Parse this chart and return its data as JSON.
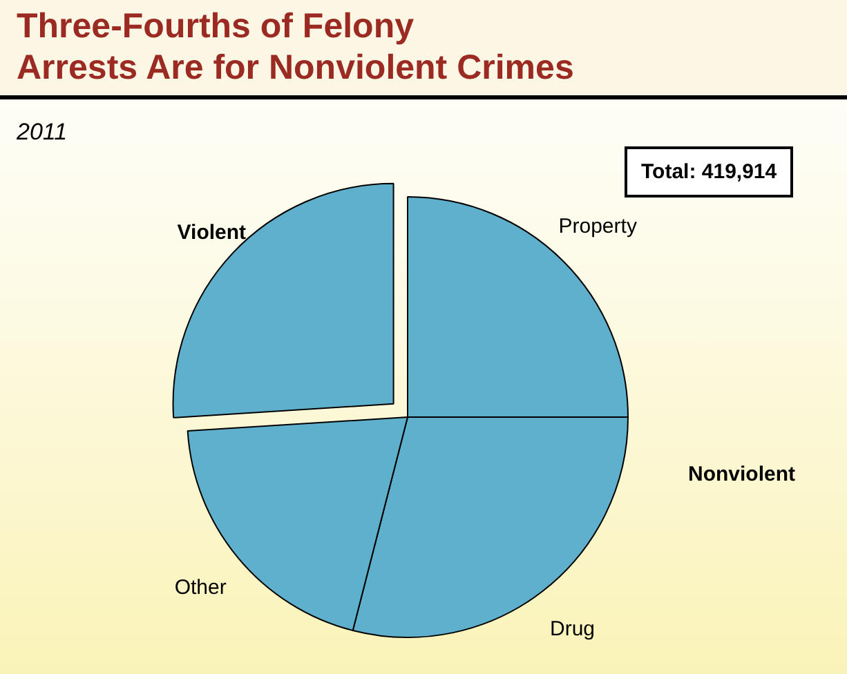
{
  "chart_data": {
    "type": "pie",
    "title": "Three-Fourths of Felony\nArrests Are for Nonviolent Crimes",
    "subtitle": "2011",
    "categories": [
      "Property",
      "Drug",
      "Other",
      "Violent"
    ],
    "values": [
      25,
      29,
      20,
      26
    ],
    "colors": [
      "#5fb0cc",
      "#5fb0cc",
      "#5fb0cc",
      "#5fb0cc"
    ],
    "annotations": [
      "Total: 419,914",
      "Nonviolent"
    ],
    "legend": false
  }
}
